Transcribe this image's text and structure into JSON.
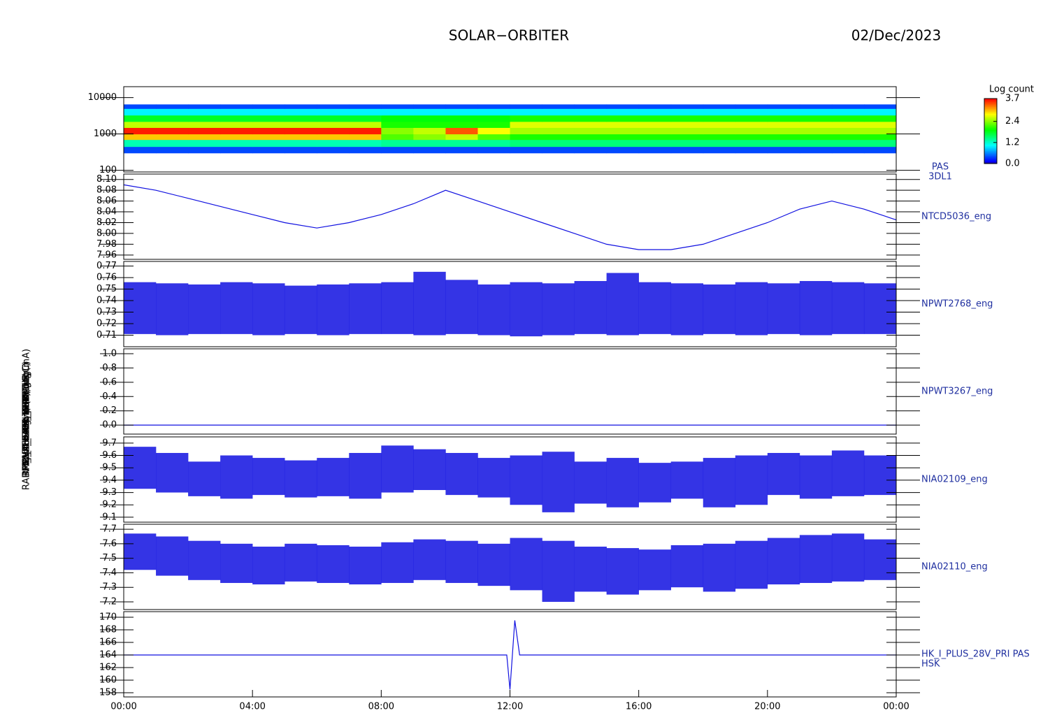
{
  "header": {
    "title": "SOLAR−ORBITER",
    "date": "02/Dec/2023"
  },
  "chart_data": [
    {
      "type": "heatmap",
      "ylabel": "Energy (eV)",
      "right_label": [
        "PAS",
        "3DL1"
      ],
      "log": true,
      "xlim": [
        0,
        24
      ],
      "ylim": [
        90,
        20000
      ],
      "yticks": [
        100,
        1000,
        10000
      ],
      "bins": [
        0,
        1,
        2,
        3,
        4,
        5,
        6,
        7,
        8,
        9,
        10,
        11,
        12,
        13,
        14,
        15,
        16,
        17,
        18,
        19,
        20,
        21,
        22,
        23,
        24
      ],
      "ybins": [
        300,
        450,
        700,
        1000,
        1500,
        2200,
        3300,
        5000,
        6500
      ],
      "z": [
        [
          0.4,
          0.4,
          0.4,
          0.4,
          0.4,
          0.4,
          0.4,
          0.4,
          0.4,
          0.4,
          0.4,
          0.4,
          0.4,
          0.4,
          0.4,
          0.4,
          0.4,
          0.4,
          0.4,
          0.4,
          0.4,
          0.4,
          0.4,
          0.4
        ],
        [
          1.3,
          1.3,
          1.3,
          1.3,
          1.3,
          1.3,
          1.3,
          1.3,
          1.4,
          1.4,
          1.4,
          1.4,
          1.5,
          1.5,
          1.5,
          1.5,
          1.5,
          1.5,
          1.5,
          1.5,
          1.5,
          1.5,
          1.5,
          1.5
        ],
        [
          3.0,
          3.0,
          3.0,
          3.0,
          3.0,
          3.0,
          3.0,
          3.0,
          2.2,
          2.4,
          2.6,
          2.2,
          2.0,
          2.0,
          2.0,
          2.0,
          2.0,
          2.0,
          2.0,
          2.0,
          2.0,
          2.0,
          2.0,
          2.0
        ],
        [
          3.6,
          3.6,
          3.6,
          3.6,
          3.6,
          3.6,
          3.6,
          3.6,
          2.4,
          2.6,
          3.4,
          2.8,
          2.5,
          2.5,
          2.5,
          2.5,
          2.5,
          2.5,
          2.5,
          2.5,
          2.5,
          2.5,
          2.5,
          2.5
        ],
        [
          2.6,
          2.6,
          2.6,
          2.6,
          2.6,
          2.6,
          2.6,
          2.6,
          2.0,
          2.0,
          2.0,
          2.0,
          2.7,
          2.7,
          2.7,
          2.7,
          2.7,
          2.7,
          2.7,
          2.7,
          2.7,
          2.7,
          2.7,
          2.7
        ],
        [
          1.8,
          1.8,
          1.8,
          1.8,
          1.8,
          1.8,
          1.8,
          1.8,
          1.9,
          1.9,
          1.9,
          1.9,
          2.0,
          2.0,
          2.0,
          2.0,
          2.0,
          2.0,
          2.0,
          2.0,
          2.0,
          2.0,
          2.0,
          2.0
        ],
        [
          1.0,
          1.0,
          1.0,
          1.0,
          1.0,
          1.0,
          1.0,
          1.0,
          1.0,
          1.0,
          1.0,
          1.0,
          1.0,
          1.0,
          1.0,
          1.0,
          1.0,
          1.0,
          1.0,
          1.0,
          1.0,
          1.0,
          1.0,
          1.0
        ],
        [
          0.4,
          0.4,
          0.4,
          0.4,
          0.4,
          0.4,
          0.4,
          0.4,
          0.4,
          0.4,
          0.4,
          0.4,
          0.4,
          0.4,
          0.4,
          0.4,
          0.4,
          0.4,
          0.4,
          0.4,
          0.4,
          0.4,
          0.4,
          0.4
        ]
      ],
      "colormap": "rainbow",
      "colorbar_title": "Log count",
      "zlim": [
        0,
        3.7
      ],
      "zticks": [
        {
          "value": 0,
          "label": "0.0"
        },
        1.2,
        2.4,
        3.7
      ]
    },
    {
      "type": "line",
      "ylabel": "Approx Temp (DegC)",
      "right_label": [
        "NTCD5036_eng"
      ],
      "color": "#1010e0",
      "xlim": [
        0,
        24
      ],
      "ylim": [
        7.952,
        8.11
      ],
      "yticks": [
        7.96,
        7.98,
        {
          "value": 8.0,
          "label": "8.00"
        },
        8.02,
        8.04,
        8.06,
        8.08,
        {
          "value": 8.1,
          "label": "8.10"
        }
      ],
      "x": [
        0,
        1,
        2,
        3,
        4,
        5,
        6,
        7,
        8,
        9,
        10,
        11,
        12,
        13,
        14,
        15,
        16,
        17,
        18,
        19,
        20,
        21,
        22,
        23,
        24
      ],
      "values": [
        8.09,
        8.08,
        8.065,
        8.05,
        8.035,
        8.02,
        8.01,
        8.02,
        8.035,
        8.055,
        8.08,
        8.06,
        8.04,
        8.02,
        8.0,
        7.98,
        7.97,
        7.97,
        7.98,
        8.0,
        8.02,
        8.045,
        8.06,
        8.045,
        8.025
      ]
    },
    {
      "type": "range",
      "ylabel": "SWA_EAS_TEMP (V)",
      "right_label": [
        "NPWT2768_eng"
      ],
      "color": "#1010e0",
      "xlim": [
        0,
        24
      ],
      "ylim": [
        0.7,
        0.774
      ],
      "yticks": [
        0.71,
        0.72,
        0.73,
        0.74,
        0.75,
        0.76,
        0.77
      ],
      "bins": [
        0,
        1,
        2,
        3,
        4,
        5,
        6,
        7,
        8,
        9,
        10,
        11,
        12,
        13,
        14,
        15,
        16,
        17,
        18,
        19,
        20,
        21,
        22,
        23,
        24
      ],
      "min": [
        0.711,
        0.71,
        0.711,
        0.711,
        0.71,
        0.711,
        0.71,
        0.711,
        0.711,
        0.71,
        0.711,
        0.71,
        0.709,
        0.71,
        0.711,
        0.71,
        0.711,
        0.71,
        0.711,
        0.71,
        0.711,
        0.71,
        0.711,
        0.711
      ],
      "max": [
        0.756,
        0.755,
        0.754,
        0.756,
        0.755,
        0.753,
        0.754,
        0.755,
        0.756,
        0.765,
        0.758,
        0.754,
        0.756,
        0.755,
        0.757,
        0.764,
        0.756,
        0.755,
        0.754,
        0.756,
        0.755,
        0.757,
        0.756,
        0.755
      ]
    },
    {
      "type": "line",
      "ylabel": "SWA_EAS2_TEMP (V)",
      "right_label": [
        "NPWT3267_eng"
      ],
      "color": "#1010e0",
      "xlim": [
        0,
        24
      ],
      "ylim": [
        -0.126,
        1.068
      ],
      "yticks": [
        {
          "value": 0,
          "label": "0.0"
        },
        0.2,
        0.4,
        0.6,
        0.8,
        {
          "value": 1,
          "label": "1.0"
        }
      ],
      "x": [
        0,
        1,
        2,
        3,
        4,
        5,
        6,
        7,
        8,
        9,
        10,
        11,
        12,
        13,
        14,
        15,
        16,
        17,
        18,
        19,
        20,
        21,
        22,
        23,
        24
      ],
      "values": [
        0,
        0,
        0,
        0,
        0,
        0,
        0,
        0,
        0,
        0,
        0,
        0,
        0,
        0,
        0,
        0,
        0,
        0,
        0,
        0,
        0,
        0,
        0,
        0,
        0
      ]
    },
    {
      "type": "range",
      "ylabel": "RPW_THERM_LFR (DegC)",
      "right_label": [
        "NIA02109_eng"
      ],
      "color": "#1010e0",
      "xlim": [
        0,
        24
      ],
      "ylim": [
        9.06,
        9.75
      ],
      "yticks": [
        9.1,
        9.2,
        9.3,
        9.4,
        9.5,
        9.6,
        9.7
      ],
      "bins": [
        0,
        1,
        2,
        3,
        4,
        5,
        6,
        7,
        8,
        9,
        10,
        11,
        12,
        13,
        14,
        15,
        16,
        17,
        18,
        19,
        20,
        21,
        22,
        23,
        24
      ],
      "min": [
        9.33,
        9.3,
        9.27,
        9.25,
        9.28,
        9.26,
        9.27,
        9.25,
        9.3,
        9.32,
        9.28,
        9.26,
        9.2,
        9.14,
        9.21,
        9.18,
        9.22,
        9.25,
        9.18,
        9.2,
        9.28,
        9.25,
        9.27,
        9.28
      ],
      "max": [
        9.67,
        9.62,
        9.55,
        9.6,
        9.58,
        9.56,
        9.58,
        9.62,
        9.68,
        9.65,
        9.62,
        9.58,
        9.6,
        9.63,
        9.55,
        9.58,
        9.54,
        9.55,
        9.58,
        9.6,
        9.62,
        9.6,
        9.64,
        9.6
      ]
    },
    {
      "type": "range",
      "ylabel": "RPW_THERM_MEB (DegC)",
      "right_label": [
        "NIA02110_eng"
      ],
      "color": "#1010e0",
      "xlim": [
        0,
        24
      ],
      "ylim": [
        7.147,
        7.734
      ],
      "yticks": [
        7.2,
        7.3,
        7.4,
        7.5,
        7.6,
        7.7
      ],
      "bins": [
        0,
        1,
        2,
        3,
        4,
        5,
        6,
        7,
        8,
        9,
        10,
        11,
        12,
        13,
        14,
        15,
        16,
        17,
        18,
        19,
        20,
        21,
        22,
        23,
        24
      ],
      "min": [
        7.42,
        7.38,
        7.35,
        7.33,
        7.32,
        7.34,
        7.33,
        7.32,
        7.33,
        7.35,
        7.33,
        7.31,
        7.28,
        7.2,
        7.27,
        7.25,
        7.28,
        7.3,
        7.27,
        7.29,
        7.32,
        7.33,
        7.34,
        7.35
      ],
      "max": [
        7.67,
        7.65,
        7.62,
        7.6,
        7.58,
        7.6,
        7.59,
        7.58,
        7.61,
        7.63,
        7.62,
        7.6,
        7.64,
        7.62,
        7.58,
        7.57,
        7.56,
        7.59,
        7.6,
        7.62,
        7.64,
        7.66,
        7.67,
        7.63
      ]
    },
    {
      "type": "line",
      "ylabel": "RADM_HK_IMON_PERMUR (mA)",
      "right_label": [
        "HK_I_PLUS_28V_PRI PAS",
        "HSK"
      ],
      "color": "#1010e0",
      "xlim": [
        0,
        24
      ],
      "ylim": [
        157.33,
        170.89
      ],
      "yticks": [
        158,
        160,
        162,
        164,
        166,
        168,
        170
      ],
      "x": [
        0,
        1,
        2,
        3,
        4,
        5,
        6,
        7,
        8,
        9,
        10,
        11,
        11.9,
        12.0,
        12.15,
        12.3,
        13,
        14,
        15,
        16,
        17,
        18,
        19,
        20,
        21,
        22,
        23,
        24
      ],
      "values": [
        164,
        164,
        164,
        164,
        164,
        164,
        164,
        164,
        164,
        164,
        164,
        164,
        164,
        158.5,
        169.5,
        164,
        164,
        164,
        164,
        164,
        164,
        164,
        164,
        164,
        164,
        164,
        164,
        164
      ],
      "xticks": [
        {
          "value": 0,
          "label": "00:00"
        },
        {
          "value": 4,
          "label": "04:00"
        },
        {
          "value": 8,
          "label": "08:00"
        },
        {
          "value": 12,
          "label": "12:00"
        },
        {
          "value": 16,
          "label": "16:00"
        },
        {
          "value": 20,
          "label": "20:00"
        },
        {
          "value": 24,
          "label": "00:00"
        }
      ]
    }
  ]
}
